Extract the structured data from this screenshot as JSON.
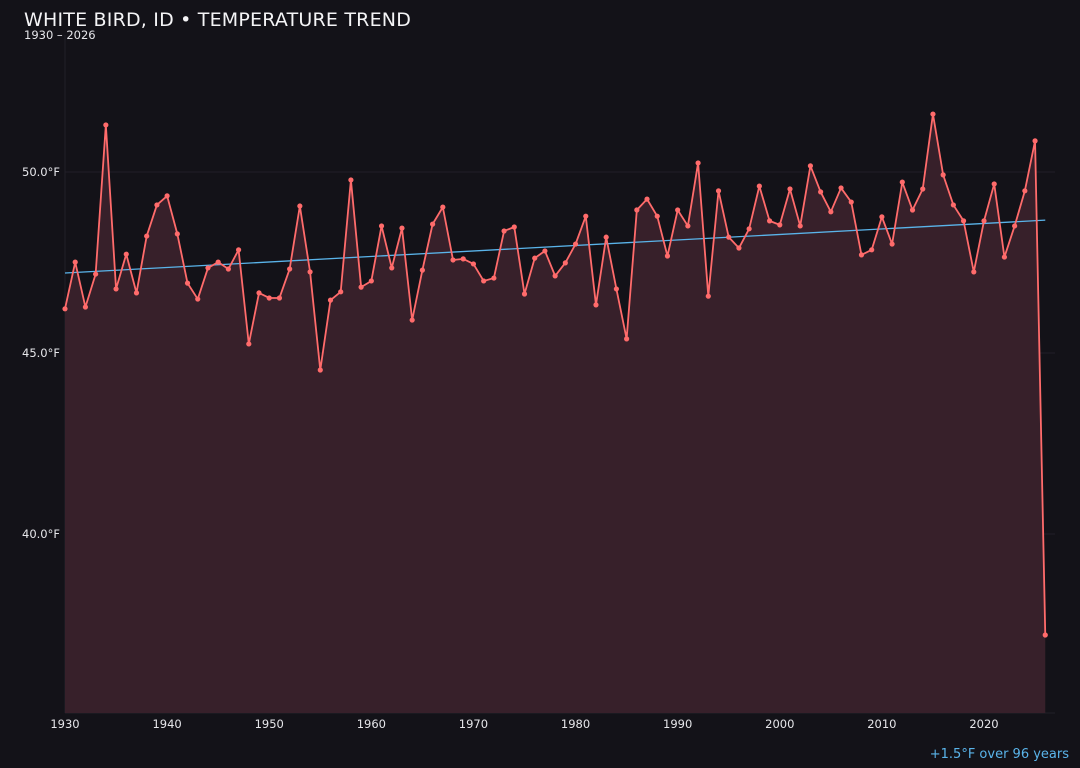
{
  "chart_data": {
    "type": "line",
    "title": "WHITE BIRD, ID • TEMPERATURE TREND",
    "subtitle": "1930 – 2026",
    "annotation": "+1.5°F over 96 years",
    "xlim": [
      1930,
      2026
    ],
    "ylim": [
      35,
      53.8
    ],
    "x_ticks": [
      1930,
      1940,
      1950,
      1960,
      1970,
      1980,
      1990,
      2000,
      2010,
      2020
    ],
    "y_ticks": [
      {
        "value": 40,
        "label": "40.0°F"
      },
      {
        "value": 45,
        "label": "45.0°F"
      },
      {
        "value": 50,
        "label": "50.0°F"
      }
    ],
    "grid": "horizontal",
    "x": [
      1930,
      1931,
      1932,
      1933,
      1934,
      1935,
      1936,
      1937,
      1938,
      1939,
      1940,
      1941,
      1942,
      1943,
      1944,
      1945,
      1946,
      1947,
      1948,
      1949,
      1950,
      1951,
      1952,
      1953,
      1954,
      1955,
      1956,
      1957,
      1958,
      1959,
      1960,
      1961,
      1962,
      1963,
      1964,
      1965,
      1966,
      1967,
      1968,
      1969,
      1970,
      1971,
      1972,
      1973,
      1974,
      1975,
      1976,
      1977,
      1978,
      1979,
      1980,
      1981,
      1982,
      1983,
      1984,
      1985,
      1986,
      1987,
      1988,
      1989,
      1990,
      1991,
      1992,
      1993,
      1994,
      1995,
      1996,
      1997,
      1998,
      1999,
      2000,
      2001,
      2002,
      2003,
      2004,
      2005,
      2006,
      2007,
      2008,
      2009,
      2010,
      2011,
      2012,
      2013,
      2014,
      2015,
      2016,
      2017,
      2018,
      2019,
      2020,
      2021,
      2022,
      2023,
      2024,
      2025,
      2026
    ],
    "series": [
      {
        "values": [
          46.22,
          47.51,
          46.27,
          47.18,
          51.3,
          46.77,
          47.73,
          46.66,
          48.23,
          49.09,
          49.34,
          48.29,
          46.93,
          46.49,
          47.35,
          47.51,
          47.32,
          47.85,
          45.25,
          46.66,
          46.52,
          46.52,
          47.32,
          49.06,
          47.24,
          44.53,
          46.46,
          46.69,
          49.78,
          46.82,
          46.99,
          48.51,
          47.35,
          48.45,
          45.91,
          47.29,
          48.56,
          49.03,
          47.57,
          47.6,
          47.46,
          46.99,
          47.07,
          48.37,
          48.48,
          46.63,
          47.62,
          47.82,
          47.13,
          47.49,
          48.01,
          48.78,
          46.33,
          48.2,
          46.77,
          45.39,
          48.95,
          49.25,
          48.78,
          47.68,
          48.95,
          48.51,
          50.25,
          46.57,
          49.48,
          48.2,
          47.9,
          48.43,
          49.61,
          48.65,
          48.54,
          49.53,
          48.51,
          50.17,
          49.45,
          48.9,
          49.56,
          49.17,
          47.71,
          47.85,
          48.76,
          48.01,
          49.72,
          48.95,
          49.53,
          51.6,
          49.92,
          49.09,
          48.65,
          47.24,
          48.65,
          49.67,
          47.65,
          48.51,
          49.48,
          50.86,
          37.21
        ],
        "color": "#ff6b6b",
        "fill": "#37202a"
      }
    ],
    "trend": {
      "x": [
        1930,
        2026
      ],
      "y": [
        47.21,
        48.67
      ],
      "color": "#5ab4ea"
    }
  }
}
